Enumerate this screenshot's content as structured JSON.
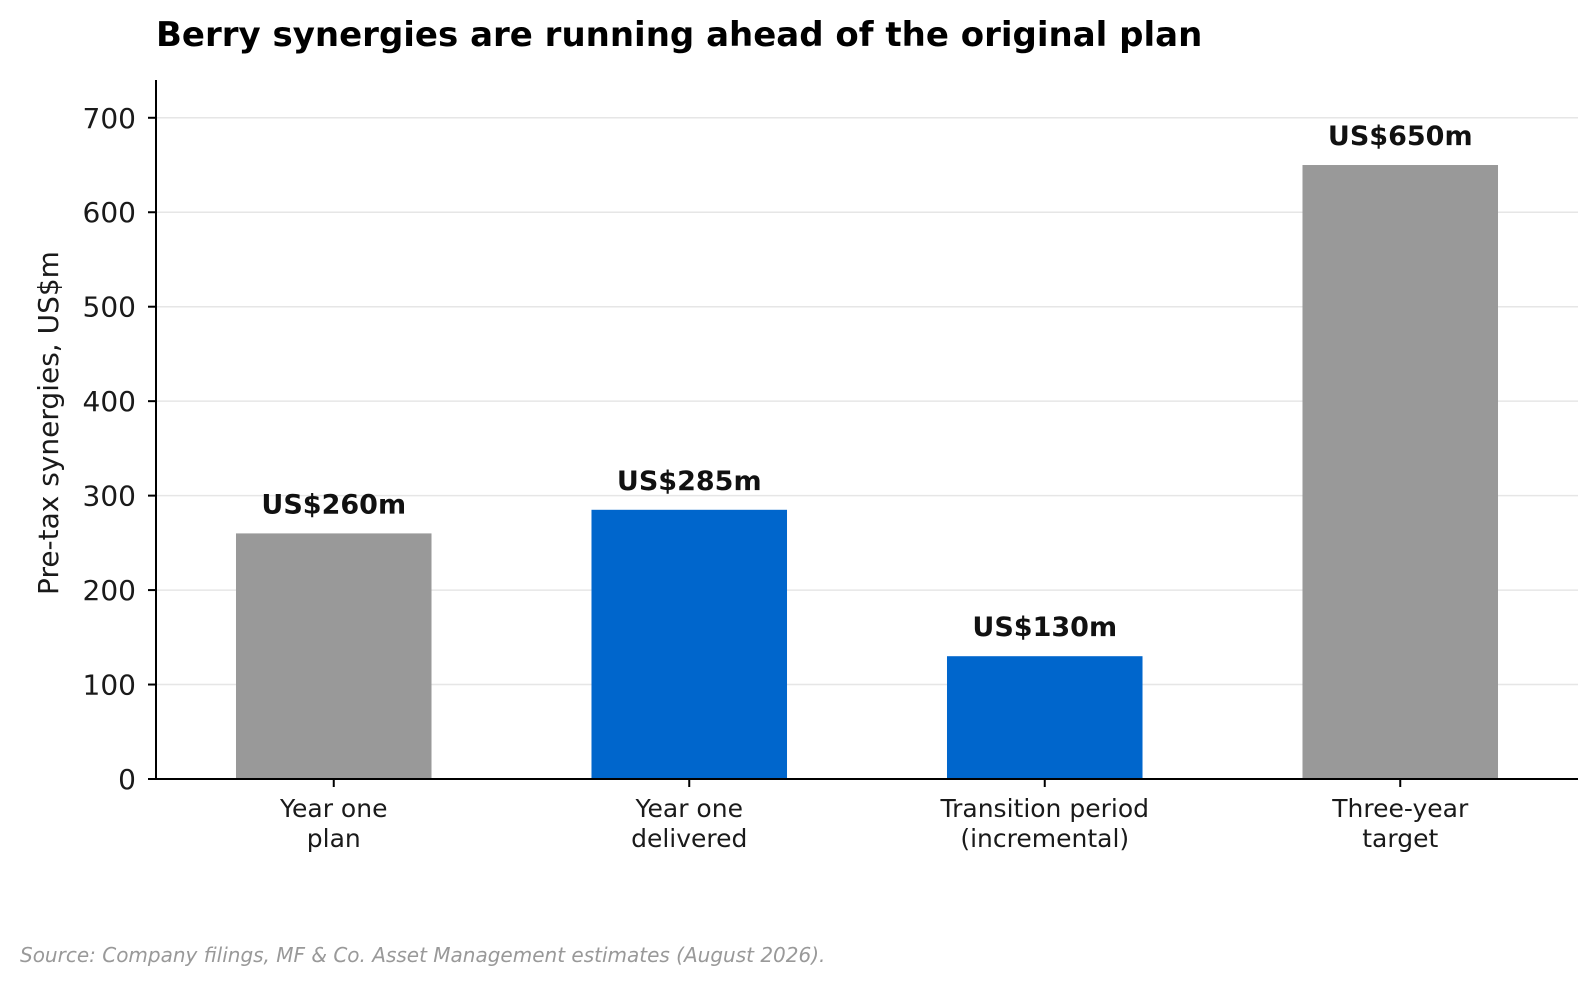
{
  "chart_data": {
    "type": "bar",
    "title": "Berry synergies are running ahead of the original plan",
    "ylabel": "Pre-tax synergies, US$m",
    "xlabel": "",
    "ylim": [
      0,
      740
    ],
    "yticks": [
      0,
      100,
      200,
      300,
      400,
      500,
      600,
      700
    ],
    "grid": "horizontal",
    "categories": [
      [
        "Year one",
        "plan"
      ],
      [
        "Year one",
        "delivered"
      ],
      [
        "Transition period",
        "(incremental)"
      ],
      [
        "Three-year",
        "target"
      ]
    ],
    "values": [
      260,
      285,
      130,
      650
    ],
    "data_labels": [
      "US$260m",
      "US$285m",
      "US$130m",
      "US$650m"
    ],
    "bar_colors": [
      "#999999",
      "#0066cc",
      "#0066cc",
      "#999999"
    ]
  },
  "source": "Source: Company filings, MF & Co. Asset Management estimates (August 2026)."
}
